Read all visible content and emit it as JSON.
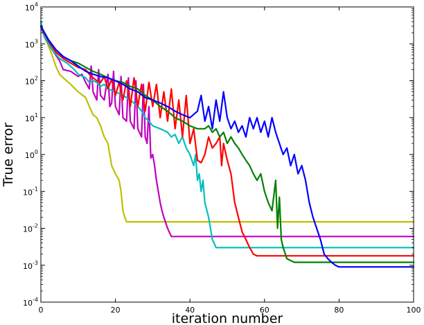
{
  "chart_data": {
    "type": "line",
    "title": "",
    "xlabel": "iteration number",
    "ylabel": "True error",
    "xlim": [
      0,
      100
    ],
    "ylim": [
      0.0001,
      10000
    ],
    "yscale": "log",
    "grid": false,
    "x_ticks": [
      "0",
      "20",
      "40",
      "60",
      "80",
      "100"
    ],
    "y_ticks": [
      {
        "base": "10",
        "exp": "-4",
        "value": 0.0001
      },
      {
        "base": "10",
        "exp": "-3",
        "value": 0.001
      },
      {
        "base": "10",
        "exp": "-2",
        "value": 0.01
      },
      {
        "base": "10",
        "exp": "-1",
        "value": 0.1
      },
      {
        "base": "10",
        "exp": "0",
        "value": 1
      },
      {
        "base": "10",
        "exp": "1",
        "value": 10
      },
      {
        "base": "10",
        "exp": "2",
        "value": 100
      },
      {
        "base": "10",
        "exp": "3",
        "value": 1000
      },
      {
        "base": "10",
        "exp": "4",
        "value": 10000
      }
    ],
    "series": [
      {
        "color": "#bfbf00",
        "points": [
          [
            0,
            3000
          ],
          [
            1,
            1500
          ],
          [
            2,
            900
          ],
          [
            3,
            500
          ],
          [
            4,
            250
          ],
          [
            5,
            150
          ],
          [
            6,
            120
          ],
          [
            8,
            80
          ],
          [
            10,
            50
          ],
          [
            12,
            35
          ],
          [
            13,
            20
          ],
          [
            14,
            12
          ],
          [
            15,
            10
          ],
          [
            16,
            6
          ],
          [
            17,
            3
          ],
          [
            18,
            2
          ],
          [
            19,
            0.5
          ],
          [
            20,
            0.3
          ],
          [
            21,
            0.2
          ],
          [
            21.5,
            0.1
          ],
          [
            22,
            0.03
          ],
          [
            22.5,
            0.02
          ],
          [
            23,
            0.015
          ],
          [
            100,
            0.015
          ]
        ]
      },
      {
        "color": "#bf00bf",
        "points": [
          [
            0,
            3000
          ],
          [
            1,
            1500
          ],
          [
            3,
            700
          ],
          [
            5,
            350
          ],
          [
            6,
            200
          ],
          [
            8,
            180
          ],
          [
            10,
            130
          ],
          [
            11,
            150
          ],
          [
            12,
            90
          ],
          [
            13,
            60
          ],
          [
            13.5,
            250
          ],
          [
            14,
            50
          ],
          [
            15,
            30
          ],
          [
            15.5,
            200
          ],
          [
            16,
            40
          ],
          [
            17,
            30
          ],
          [
            18,
            150
          ],
          [
            18.5,
            20
          ],
          [
            19,
            25
          ],
          [
            19.5,
            180
          ],
          [
            20,
            20
          ],
          [
            21,
            12
          ],
          [
            21.5,
            130
          ],
          [
            22,
            10
          ],
          [
            23,
            8
          ],
          [
            23.5,
            120
          ],
          [
            24,
            8
          ],
          [
            25,
            5
          ],
          [
            25.5,
            100
          ],
          [
            26,
            5
          ],
          [
            27,
            3
          ],
          [
            27.5,
            80
          ],
          [
            28,
            3
          ],
          [
            28.5,
            2
          ],
          [
            29,
            20
          ],
          [
            29.5,
            0.8
          ],
          [
            30,
            1
          ],
          [
            30.5,
            0.5
          ],
          [
            31,
            0.2
          ],
          [
            32,
            0.05
          ],
          [
            32.5,
            0.03
          ],
          [
            33,
            0.02
          ],
          [
            34,
            0.01
          ],
          [
            35,
            0.006
          ],
          [
            100,
            0.006
          ]
        ]
      },
      {
        "color": "#00bfbf",
        "points": [
          [
            0,
            4000
          ],
          [
            1,
            1500
          ],
          [
            3,
            700
          ],
          [
            5,
            400
          ],
          [
            7,
            300
          ],
          [
            9,
            200
          ],
          [
            10,
            150
          ],
          [
            12,
            120
          ],
          [
            13,
            90
          ],
          [
            14,
            100
          ],
          [
            15,
            90
          ],
          [
            16,
            70
          ],
          [
            17,
            80
          ],
          [
            18,
            60
          ],
          [
            20,
            50
          ],
          [
            22,
            40
          ],
          [
            24,
            30
          ],
          [
            26,
            20
          ],
          [
            27,
            15
          ],
          [
            28,
            10
          ],
          [
            29,
            8
          ],
          [
            30,
            6
          ],
          [
            32,
            5
          ],
          [
            34,
            4
          ],
          [
            35,
            3
          ],
          [
            36,
            3.5
          ],
          [
            37,
            2
          ],
          [
            38,
            3
          ],
          [
            39,
            1.5
          ],
          [
            40,
            1
          ],
          [
            41,
            0.5
          ],
          [
            41.5,
            1
          ],
          [
            42,
            0.2
          ],
          [
            42.5,
            0.3
          ],
          [
            43,
            0.1
          ],
          [
            43.5,
            0.2
          ],
          [
            44,
            0.05
          ],
          [
            45,
            0.02
          ],
          [
            45.5,
            0.01
          ],
          [
            46,
            0.005
          ],
          [
            47,
            0.003
          ],
          [
            100,
            0.003
          ]
        ]
      },
      {
        "color": "#ff0000",
        "points": [
          [
            0,
            3000
          ],
          [
            2,
            1200
          ],
          [
            4,
            600
          ],
          [
            6,
            400
          ],
          [
            8,
            300
          ],
          [
            10,
            230
          ],
          [
            12,
            200
          ],
          [
            13,
            150
          ],
          [
            14,
            120
          ],
          [
            15,
            100
          ],
          [
            16,
            90
          ],
          [
            17,
            130
          ],
          [
            18,
            60
          ],
          [
            19,
            110
          ],
          [
            20,
            40
          ],
          [
            21,
            90
          ],
          [
            22,
            30
          ],
          [
            23,
            100
          ],
          [
            24,
            20
          ],
          [
            25,
            120
          ],
          [
            26,
            20
          ],
          [
            27,
            80
          ],
          [
            28,
            15
          ],
          [
            29,
            90
          ],
          [
            30,
            20
          ],
          [
            31,
            80
          ],
          [
            32,
            10
          ],
          [
            33,
            50
          ],
          [
            34,
            8
          ],
          [
            35,
            60
          ],
          [
            36,
            5
          ],
          [
            37,
            30
          ],
          [
            38,
            3
          ],
          [
            39,
            40
          ],
          [
            40,
            2
          ],
          [
            41,
            5
          ],
          [
            42,
            0.7
          ],
          [
            43,
            0.6
          ],
          [
            44,
            1
          ],
          [
            45,
            3
          ],
          [
            46,
            1.5
          ],
          [
            47,
            2
          ],
          [
            48,
            3
          ],
          [
            48.5,
            0.5
          ],
          [
            49,
            2
          ],
          [
            50,
            0.7
          ],
          [
            51,
            0.3
          ],
          [
            52,
            0.05
          ],
          [
            53,
            0.02
          ],
          [
            54,
            0.008
          ],
          [
            55,
            0.005
          ],
          [
            56,
            0.003
          ],
          [
            57,
            0.002
          ],
          [
            58,
            0.0018
          ],
          [
            100,
            0.0018
          ]
        ]
      },
      {
        "color": "#008000",
        "points": [
          [
            0,
            3000
          ],
          [
            2,
            1300
          ],
          [
            4,
            700
          ],
          [
            6,
            450
          ],
          [
            8,
            350
          ],
          [
            10,
            300
          ],
          [
            12,
            230
          ],
          [
            14,
            180
          ],
          [
            16,
            150
          ],
          [
            18,
            120
          ],
          [
            20,
            100
          ],
          [
            22,
            90
          ],
          [
            24,
            70
          ],
          [
            26,
            60
          ],
          [
            28,
            40
          ],
          [
            30,
            30
          ],
          [
            32,
            20
          ],
          [
            34,
            15
          ],
          [
            36,
            10
          ],
          [
            38,
            8
          ],
          [
            40,
            6
          ],
          [
            42,
            5
          ],
          [
            44,
            5
          ],
          [
            45,
            6
          ],
          [
            46,
            4
          ],
          [
            47,
            5
          ],
          [
            48,
            3
          ],
          [
            49,
            4
          ],
          [
            50,
            2
          ],
          [
            51,
            3
          ],
          [
            52,
            2
          ],
          [
            53,
            1.5
          ],
          [
            54,
            1
          ],
          [
            55,
            0.7
          ],
          [
            56,
            0.5
          ],
          [
            57,
            0.3
          ],
          [
            58,
            0.2
          ],
          [
            59,
            0.3
          ],
          [
            60,
            0.1
          ],
          [
            61,
            0.05
          ],
          [
            62,
            0.03
          ],
          [
            63,
            0.2
          ],
          [
            63.5,
            0.01
          ],
          [
            64,
            0.07
          ],
          [
            64.5,
            0.005
          ],
          [
            65,
            0.003
          ],
          [
            66,
            0.0015
          ],
          [
            68,
            0.0012
          ],
          [
            100,
            0.0012
          ]
        ]
      },
      {
        "color": "#0000ff",
        "points": [
          [
            0,
            3000
          ],
          [
            2,
            1300
          ],
          [
            4,
            700
          ],
          [
            6,
            450
          ],
          [
            8,
            350
          ],
          [
            10,
            250
          ],
          [
            12,
            180
          ],
          [
            14,
            150
          ],
          [
            16,
            130
          ],
          [
            18,
            120
          ],
          [
            20,
            100
          ],
          [
            22,
            80
          ],
          [
            24,
            60
          ],
          [
            26,
            50
          ],
          [
            28,
            35
          ],
          [
            30,
            30
          ],
          [
            32,
            25
          ],
          [
            34,
            20
          ],
          [
            36,
            15
          ],
          [
            38,
            12
          ],
          [
            40,
            10
          ],
          [
            42,
            15
          ],
          [
            43,
            40
          ],
          [
            44,
            8
          ],
          [
            45,
            20
          ],
          [
            46,
            5
          ],
          [
            47,
            30
          ],
          [
            48,
            8
          ],
          [
            49,
            50
          ],
          [
            50,
            10
          ],
          [
            51,
            5
          ],
          [
            52,
            8
          ],
          [
            53,
            4
          ],
          [
            54,
            6
          ],
          [
            55,
            3
          ],
          [
            56,
            10
          ],
          [
            57,
            5
          ],
          [
            58,
            10
          ],
          [
            59,
            4
          ],
          [
            60,
            8
          ],
          [
            61,
            3
          ],
          [
            62,
            10
          ],
          [
            63,
            4
          ],
          [
            64,
            2
          ],
          [
            65,
            1
          ],
          [
            66,
            1.5
          ],
          [
            67,
            0.5
          ],
          [
            68,
            1
          ],
          [
            69,
            0.3
          ],
          [
            70,
            0.5
          ],
          [
            71,
            0.2
          ],
          [
            72,
            0.05
          ],
          [
            73,
            0.02
          ],
          [
            74,
            0.01
          ],
          [
            75,
            0.005
          ],
          [
            76,
            0.002
          ],
          [
            77,
            0.0015
          ],
          [
            78,
            0.0012
          ],
          [
            79,
            0.001
          ],
          [
            80,
            0.0009
          ],
          [
            100,
            0.0009
          ]
        ]
      }
    ]
  }
}
